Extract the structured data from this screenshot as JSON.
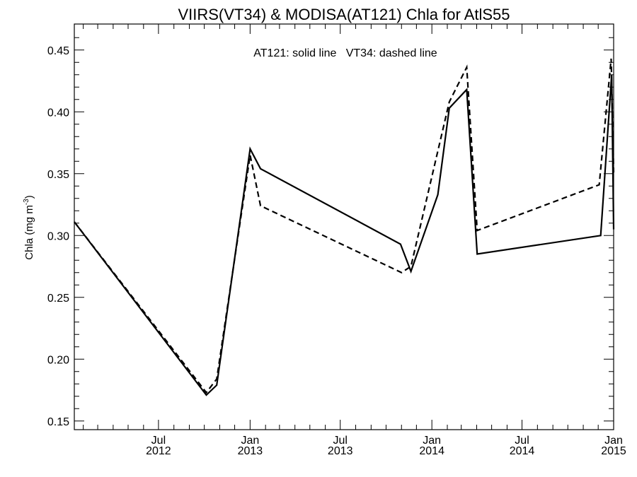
{
  "chart_data": {
    "type": "line",
    "title": "VIIRS(VT34) & MODISA(AT121)  Chla for AtlS55",
    "annotation": "AT121: solid line   VT34: dashed line",
    "ylabel": "Chla (mg m",
    "ylabel_superscript": "-3",
    "ylabel_close": ")",
    "ylim": [
      0.143,
      0.471
    ],
    "xlim": [
      "2012-01-14",
      "2015-01-01"
    ],
    "y_ticks": [
      "0.15",
      "0.20",
      "0.25",
      "0.30",
      "0.35",
      "0.40",
      "0.45"
    ],
    "x_ticks": [
      {
        "date": "2012-07-01",
        "month": "Jul",
        "year": "2012"
      },
      {
        "date": "2013-01-01",
        "month": "Jan",
        "year": "2013"
      },
      {
        "date": "2013-07-01",
        "month": "Jul",
        "year": "2013"
      },
      {
        "date": "2014-01-01",
        "month": "Jan",
        "year": "2014"
      },
      {
        "date": "2014-07-01",
        "month": "Jul",
        "year": "2014"
      },
      {
        "date": "2015-01-01",
        "month": "Jan",
        "year": "2015"
      }
    ],
    "minor_x_ticks": [
      "2012-02-01",
      "2012-03-01",
      "2012-04-01",
      "2012-05-01",
      "2012-06-01",
      "2012-08-01",
      "2012-09-01",
      "2012-10-01",
      "2012-11-01",
      "2012-12-01",
      "2013-02-01",
      "2013-03-01",
      "2013-04-01",
      "2013-05-01",
      "2013-06-01",
      "2013-08-01",
      "2013-09-01",
      "2013-10-01",
      "2013-11-01",
      "2013-12-01",
      "2014-02-01",
      "2014-03-01",
      "2014-04-01",
      "2014-05-01",
      "2014-06-01",
      "2014-08-01",
      "2014-09-01",
      "2014-10-01",
      "2014-11-01",
      "2014-12-01"
    ],
    "minor_y_ticks": [
      0.16,
      0.17,
      0.18,
      0.19,
      0.21,
      0.22,
      0.23,
      0.24,
      0.26,
      0.27,
      0.28,
      0.29,
      0.31,
      0.32,
      0.33,
      0.34,
      0.36,
      0.37,
      0.38,
      0.39,
      0.41,
      0.42,
      0.43,
      0.44,
      0.46
    ],
    "grid": false,
    "series": [
      {
        "name": "AT121",
        "style": "solid",
        "color": "#000000",
        "points": [
          {
            "x": "2012-01-14",
            "y": 0.311
          },
          {
            "x": "2012-10-05",
            "y": 0.171
          },
          {
            "x": "2012-10-26",
            "y": 0.179
          },
          {
            "x": "2013-01-01",
            "y": 0.37
          },
          {
            "x": "2013-01-22",
            "y": 0.354
          },
          {
            "x": "2013-10-30",
            "y": 0.293
          },
          {
            "x": "2013-11-20",
            "y": 0.271
          },
          {
            "x": "2014-01-13",
            "y": 0.333
          },
          {
            "x": "2014-02-05",
            "y": 0.403
          },
          {
            "x": "2014-03-12",
            "y": 0.418
          },
          {
            "x": "2014-04-02",
            "y": 0.285
          },
          {
            "x": "2014-12-06",
            "y": 0.3
          },
          {
            "x": "2014-12-28",
            "y": 0.43
          },
          {
            "x": "2015-01-01",
            "y": 0.305
          }
        ]
      },
      {
        "name": "VT34",
        "style": "dashed",
        "color": "#000000",
        "points": [
          {
            "x": "2012-01-14",
            "y": 0.311
          },
          {
            "x": "2012-10-05",
            "y": 0.173
          },
          {
            "x": "2012-10-26",
            "y": 0.184
          },
          {
            "x": "2013-01-01",
            "y": 0.365
          },
          {
            "x": "2013-01-22",
            "y": 0.324
          },
          {
            "x": "2013-11-01",
            "y": 0.27
          },
          {
            "x": "2013-11-20",
            "y": 0.275
          },
          {
            "x": "2014-02-05",
            "y": 0.408
          },
          {
            "x": "2014-03-12",
            "y": 0.436
          },
          {
            "x": "2014-04-02",
            "y": 0.304
          },
          {
            "x": "2014-12-03",
            "y": 0.341
          },
          {
            "x": "2014-12-27",
            "y": 0.443
          },
          {
            "x": "2015-01-01",
            "y": 0.351
          }
        ]
      }
    ]
  }
}
